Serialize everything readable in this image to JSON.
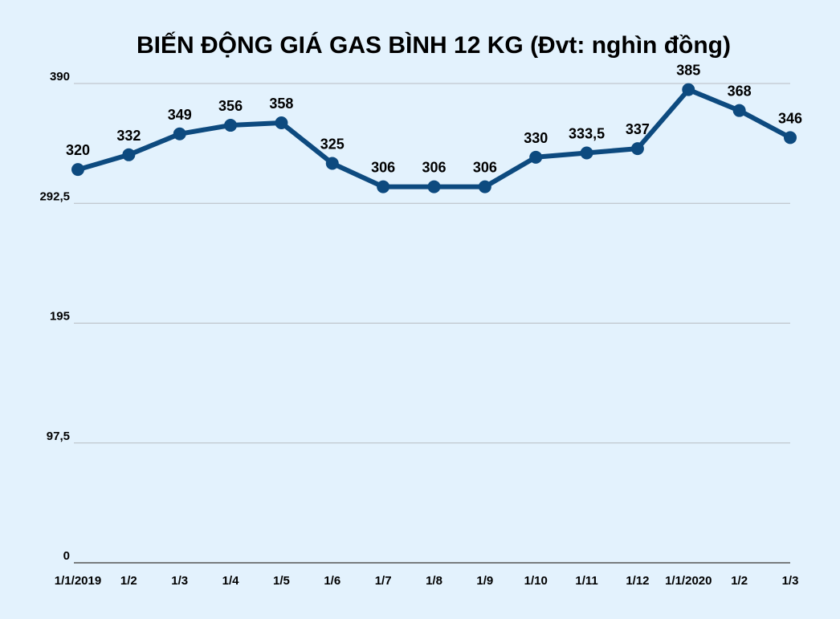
{
  "chart_data": {
    "type": "line",
    "title": "BIẾN ĐỘNG GIÁ GAS BÌNH 12 KG (Đvt: nghìn đồng)",
    "xlabel": "",
    "ylabel": "",
    "categories": [
      "1/1/2019",
      "1/2",
      "1/3",
      "1/4",
      "1/5",
      "1/6",
      "1/7",
      "1/8",
      "1/9",
      "1/10",
      "1/11",
      "1/12",
      "1/1/2020",
      "1/2",
      "1/3"
    ],
    "series": [
      {
        "values": [
          320,
          332,
          349,
          356,
          358,
          325,
          306,
          306,
          306,
          330,
          333.5,
          337,
          385,
          368,
          346
        ]
      }
    ],
    "data_labels": [
      "320",
      "332",
      "349",
      "356",
      "358",
      "325",
      "306",
      "306",
      "306",
      "330",
      "333,5",
      "337",
      "385",
      "368",
      "346"
    ],
    "ylim": [
      0,
      390
    ],
    "yticks": [
      0,
      97.5,
      195,
      292.5,
      390
    ],
    "ytick_labels": [
      "0",
      "97,5",
      "195",
      "292,5",
      "390"
    ],
    "grid": true,
    "legend": "none",
    "colors": {
      "background": "#e3f2fd",
      "line": "#0d4a7f",
      "grid": "#b8bcc2",
      "axis": "#555555"
    }
  }
}
